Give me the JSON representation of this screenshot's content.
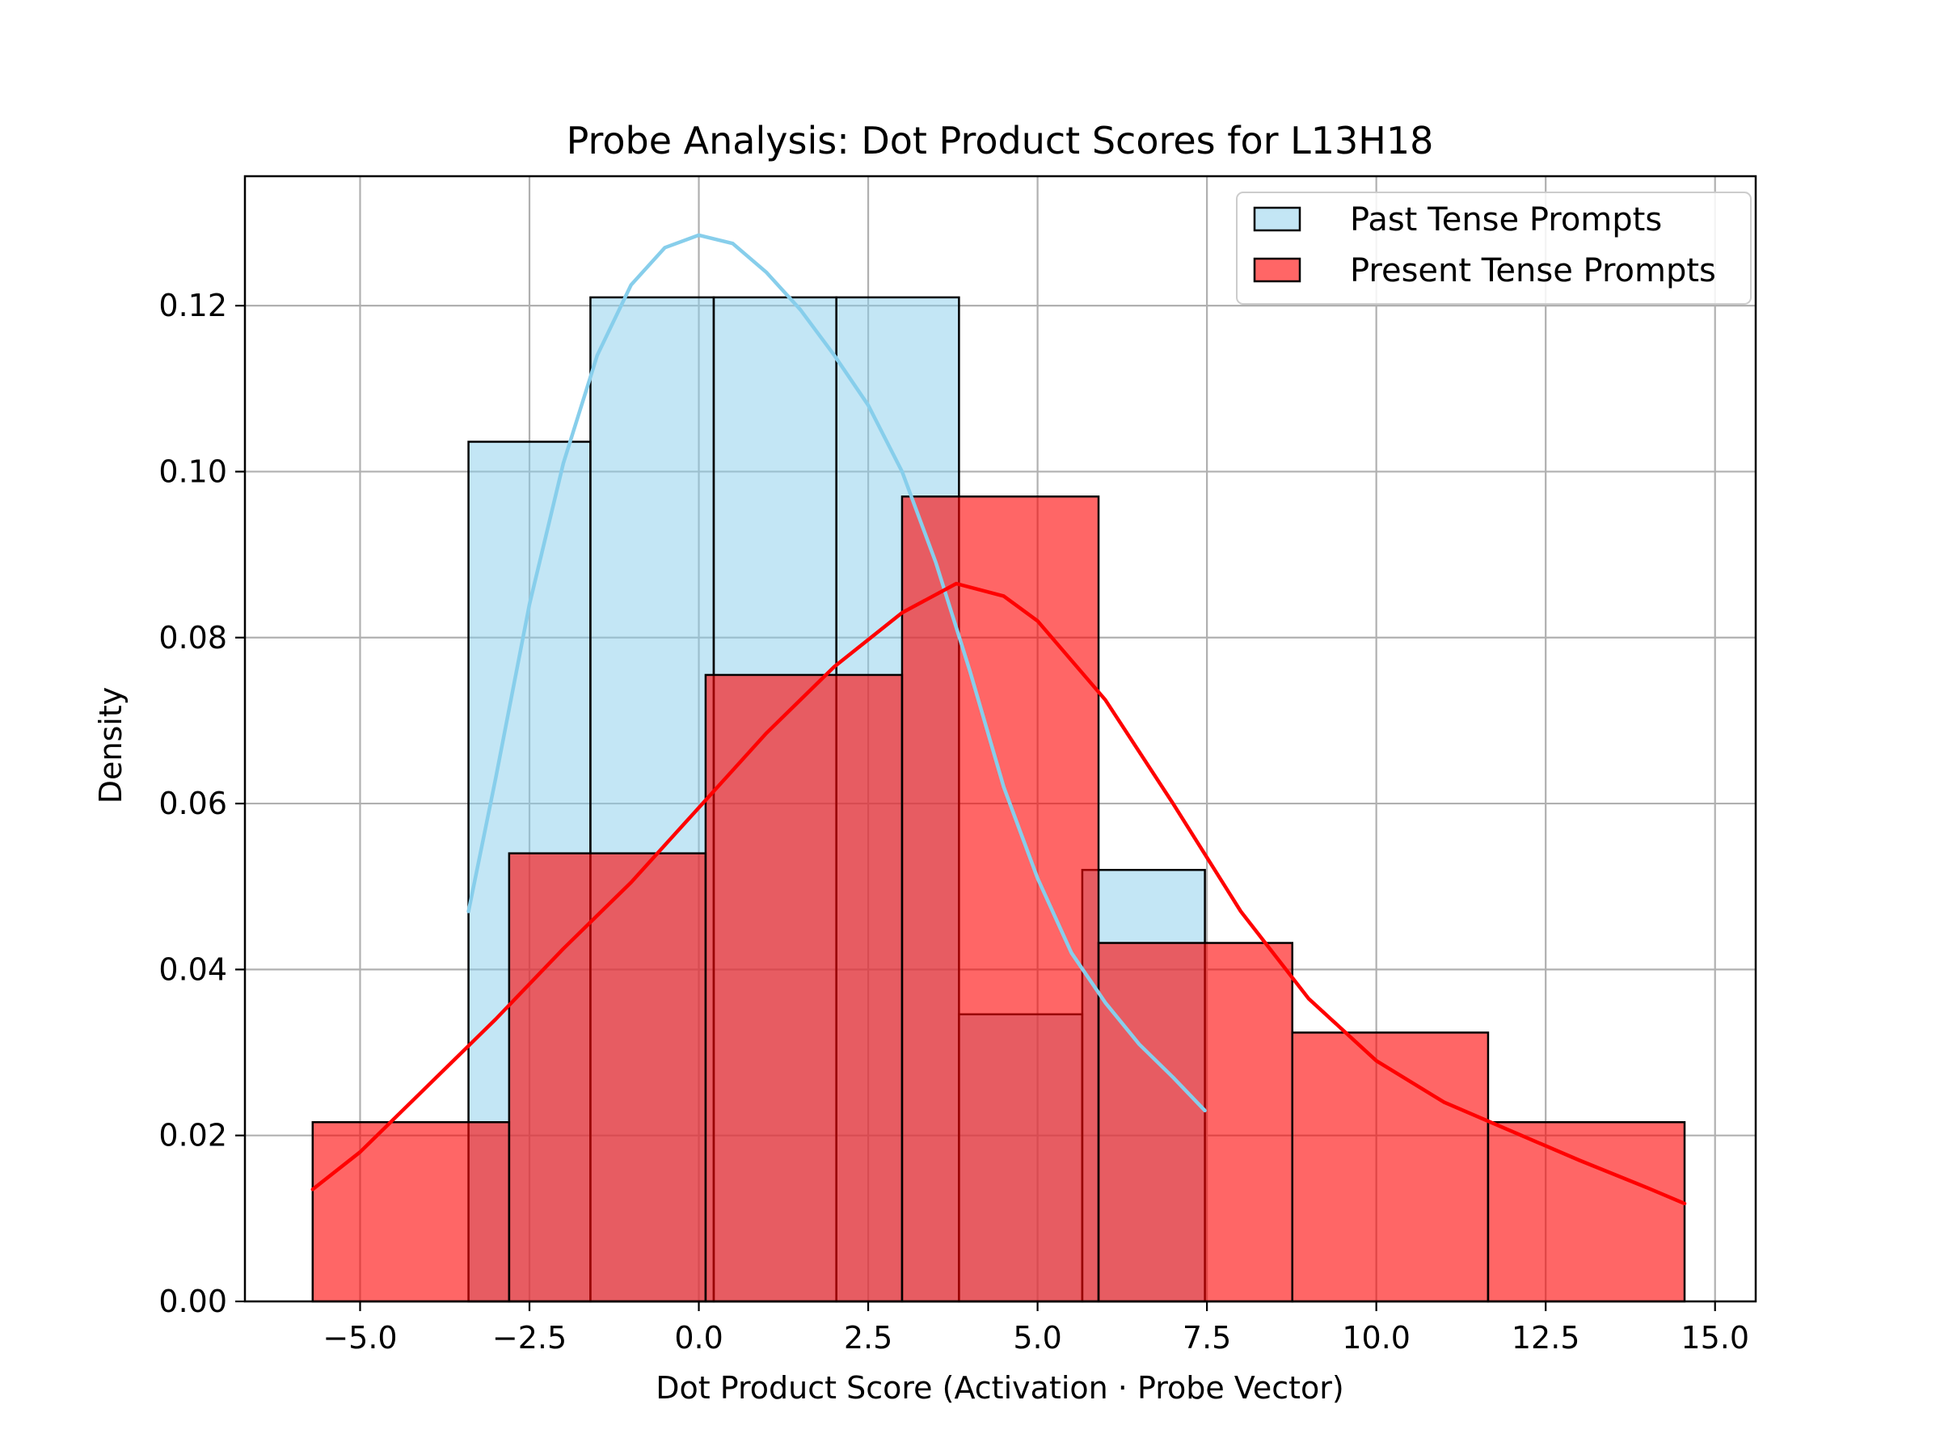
{
  "chart_data": {
    "type": "histogram",
    "title": "Probe Analysis: Dot Product Scores for L13H18",
    "xlabel": "Dot Product Score (Activation · Probe Vector)",
    "ylabel": "Density",
    "xlim": [
      -6.7,
      15.6
    ],
    "ylim": [
      0,
      0.1356
    ],
    "grid": true,
    "legend_position": "top-right",
    "x_ticks": [
      -5.0,
      -2.5,
      0.0,
      2.5,
      5.0,
      7.5,
      10.0,
      12.5,
      15.0
    ],
    "x_tick_labels": [
      "−5.0",
      "−2.5",
      "0.0",
      "2.5",
      "5.0",
      "7.5",
      "10.0",
      "12.5",
      "15.0"
    ],
    "y_ticks": [
      0.0,
      0.02,
      0.04,
      0.06,
      0.08,
      0.1,
      0.12
    ],
    "y_tick_labels": [
      "0.00",
      "0.02",
      "0.04",
      "0.06",
      "0.08",
      "0.10",
      "0.12"
    ],
    "series": [
      {
        "name": "Past Tense Prompts",
        "fill_color": "#87ceeb",
        "line_color": "#87ceeb",
        "bins": [
          {
            "x0": -3.4,
            "x1": -1.6,
            "density": 0.1036
          },
          {
            "x0": -1.6,
            "x1": 0.22,
            "density": 0.121
          },
          {
            "x0": 0.22,
            "x1": 2.03,
            "density": 0.121
          },
          {
            "x0": 2.03,
            "x1": 3.84,
            "density": 0.121
          },
          {
            "x0": 3.84,
            "x1": 5.66,
            "density": 0.0346
          },
          {
            "x0": 5.66,
            "x1": 7.47,
            "density": 0.052
          }
        ],
        "kde": [
          [
            -3.4,
            0.047
          ],
          [
            -3.0,
            0.063
          ],
          [
            -2.5,
            0.084
          ],
          [
            -2.0,
            0.101
          ],
          [
            -1.5,
            0.114
          ],
          [
            -1.0,
            0.1225
          ],
          [
            -0.5,
            0.127
          ],
          [
            0.0,
            0.1285
          ],
          [
            0.5,
            0.1275
          ],
          [
            1.0,
            0.124
          ],
          [
            1.5,
            0.1195
          ],
          [
            2.0,
            0.114
          ],
          [
            2.5,
            0.108
          ],
          [
            3.0,
            0.1
          ],
          [
            3.5,
            0.089
          ],
          [
            4.0,
            0.076
          ],
          [
            4.5,
            0.062
          ],
          [
            5.0,
            0.051
          ],
          [
            5.5,
            0.042
          ],
          [
            6.0,
            0.036
          ],
          [
            6.5,
            0.031
          ],
          [
            7.0,
            0.027
          ],
          [
            7.47,
            0.023
          ]
        ]
      },
      {
        "name": "Present Tense Prompts",
        "fill_color": "#ff0000",
        "line_color": "#ff0000",
        "bins": [
          {
            "x0": -5.7,
            "x1": -2.8,
            "density": 0.0216
          },
          {
            "x0": -2.8,
            "x1": 0.1,
            "density": 0.054
          },
          {
            "x0": 0.1,
            "x1": 3.0,
            "density": 0.0755
          },
          {
            "x0": 3.0,
            "x1": 5.9,
            "density": 0.097
          },
          {
            "x0": 5.9,
            "x1": 8.76,
            "density": 0.0432
          },
          {
            "x0": 8.76,
            "x1": 11.65,
            "density": 0.0324
          },
          {
            "x0": 11.65,
            "x1": 14.55,
            "density": 0.0216
          }
        ],
        "kde": [
          [
            -5.7,
            0.0135
          ],
          [
            -5.0,
            0.018
          ],
          [
            -4.0,
            0.026
          ],
          [
            -3.0,
            0.034
          ],
          [
            -2.0,
            0.0425
          ],
          [
            -1.0,
            0.0505
          ],
          [
            0.0,
            0.0595
          ],
          [
            1.0,
            0.0685
          ],
          [
            2.0,
            0.0765
          ],
          [
            3.0,
            0.083
          ],
          [
            3.8,
            0.0865
          ],
          [
            4.5,
            0.085
          ],
          [
            5.0,
            0.082
          ],
          [
            6.0,
            0.0725
          ],
          [
            7.0,
            0.06
          ],
          [
            8.0,
            0.047
          ],
          [
            9.0,
            0.0365
          ],
          [
            10.0,
            0.029
          ],
          [
            11.0,
            0.024
          ],
          [
            12.0,
            0.0205
          ],
          [
            13.0,
            0.017
          ],
          [
            14.0,
            0.0137
          ],
          [
            14.55,
            0.0118
          ]
        ]
      }
    ]
  }
}
